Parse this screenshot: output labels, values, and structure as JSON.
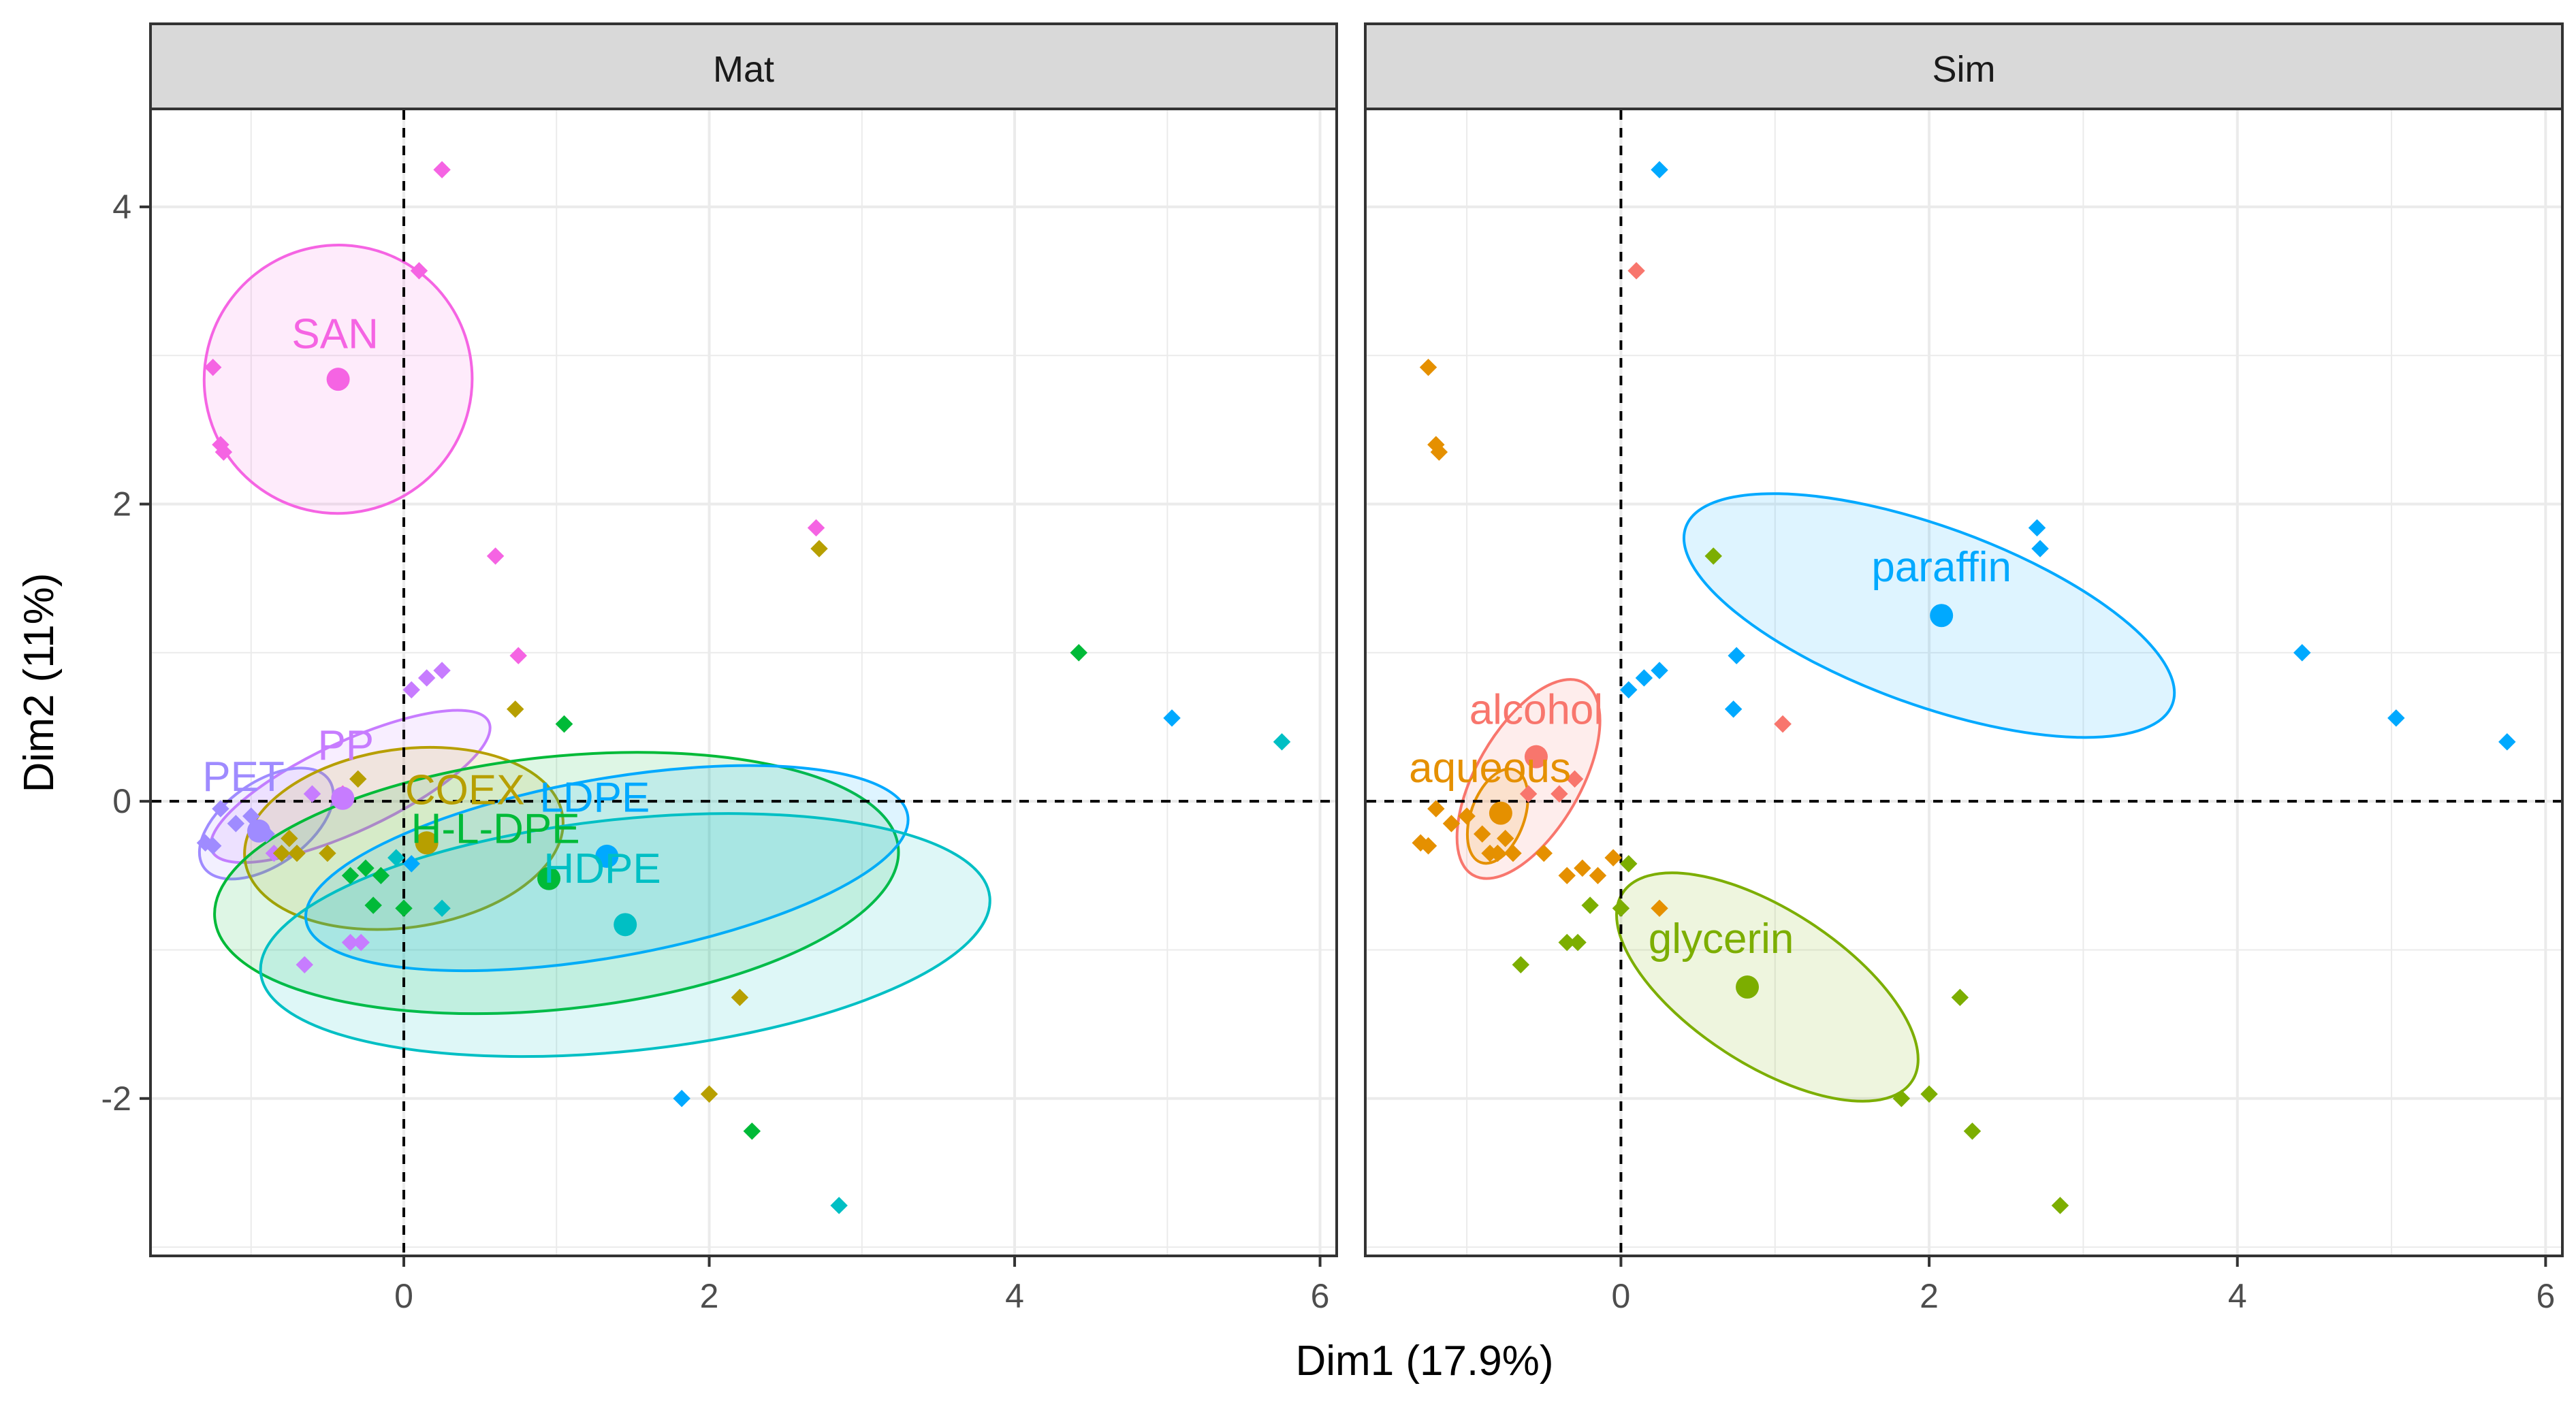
{
  "chart_data": {
    "type": "scatter",
    "subtype": "PCA individuals plot with 95% confidence ellipses, faceted",
    "xlabel": "Dim1 (17.9%)",
    "ylabel": "Dim2 (11%)",
    "xlim": [
      -1.65,
      6.1
    ],
    "ylim": [
      -3.05,
      4.65
    ],
    "xticks": [
      0,
      2,
      4,
      6
    ],
    "yticks": [
      -2,
      0,
      2,
      4
    ],
    "grid": true,
    "reference_lines": {
      "x": 0,
      "y": 0,
      "style": "dashed"
    },
    "points": [
      {
        "x": 0.25,
        "y": 4.25,
        "mat": "SAN",
        "sim": "paraffin"
      },
      {
        "x": 0.1,
        "y": 3.57,
        "mat": "SAN",
        "sim": "alcohol"
      },
      {
        "x": -1.25,
        "y": 2.92,
        "mat": "SAN",
        "sim": "aqueous"
      },
      {
        "x": -1.2,
        "y": 2.4,
        "mat": "SAN",
        "sim": "aqueous"
      },
      {
        "x": -1.18,
        "y": 2.35,
        "mat": "SAN",
        "sim": "aqueous"
      },
      {
        "x": 0.6,
        "y": 1.65,
        "mat": "SAN",
        "sim": "glycerin"
      },
      {
        "x": 0.75,
        "y": 0.98,
        "mat": "SAN",
        "sim": "paraffin"
      },
      {
        "x": 2.7,
        "y": 1.84,
        "mat": "SAN",
        "sim": "paraffin"
      },
      {
        "x": 2.72,
        "y": 1.7,
        "mat": "COEX",
        "sim": "paraffin"
      },
      {
        "x": 4.42,
        "y": 1.0,
        "mat": "H-L-DPE",
        "sim": "paraffin"
      },
      {
        "x": 5.03,
        "y": 0.56,
        "mat": "LDPE",
        "sim": "paraffin"
      },
      {
        "x": 5.75,
        "y": 0.4,
        "mat": "HDPE",
        "sim": "paraffin"
      },
      {
        "x": 0.05,
        "y": 0.75,
        "mat": "PP",
        "sim": "paraffin"
      },
      {
        "x": 0.15,
        "y": 0.83,
        "mat": "PP",
        "sim": "paraffin"
      },
      {
        "x": 0.25,
        "y": 0.88,
        "mat": "PP",
        "sim": "paraffin"
      },
      {
        "x": 0.73,
        "y": 0.62,
        "mat": "COEX",
        "sim": "paraffin"
      },
      {
        "x": 1.05,
        "y": 0.52,
        "mat": "H-L-DPE",
        "sim": "alcohol"
      },
      {
        "x": -0.6,
        "y": 0.05,
        "mat": "PP",
        "sim": "alcohol"
      },
      {
        "x": -0.4,
        "y": 0.05,
        "mat": "SAN",
        "sim": "alcohol"
      },
      {
        "x": -0.3,
        "y": 0.15,
        "mat": "COEX",
        "sim": "alcohol"
      },
      {
        "x": -1.0,
        "y": -0.1,
        "mat": "PET",
        "sim": "aqueous"
      },
      {
        "x": -1.1,
        "y": -0.15,
        "mat": "PET",
        "sim": "aqueous"
      },
      {
        "x": -1.2,
        "y": -0.05,
        "mat": "PET",
        "sim": "aqueous"
      },
      {
        "x": -1.3,
        "y": -0.28,
        "mat": "PET",
        "sim": "aqueous"
      },
      {
        "x": -1.25,
        "y": -0.3,
        "mat": "PET",
        "sim": "aqueous"
      },
      {
        "x": -0.9,
        "y": -0.22,
        "mat": "PET",
        "sim": "aqueous"
      },
      {
        "x": -0.85,
        "y": -0.35,
        "mat": "PP",
        "sim": "aqueous"
      },
      {
        "x": -0.8,
        "y": -0.35,
        "mat": "COEX",
        "sim": "aqueous"
      },
      {
        "x": -0.7,
        "y": -0.35,
        "mat": "COEX",
        "sim": "aqueous"
      },
      {
        "x": -0.75,
        "y": -0.25,
        "mat": "COEX",
        "sim": "aqueous"
      },
      {
        "x": -0.5,
        "y": -0.35,
        "mat": "COEX",
        "sim": "aqueous"
      },
      {
        "x": -0.35,
        "y": -0.5,
        "mat": "H-L-DPE",
        "sim": "aqueous"
      },
      {
        "x": -0.25,
        "y": -0.45,
        "mat": "H-L-DPE",
        "sim": "aqueous"
      },
      {
        "x": -0.15,
        "y": -0.5,
        "mat": "H-L-DPE",
        "sim": "aqueous"
      },
      {
        "x": -0.05,
        "y": -0.38,
        "mat": "HDPE",
        "sim": "aqueous"
      },
      {
        "x": 0.05,
        "y": -0.42,
        "mat": "LDPE",
        "sim": "glycerin"
      },
      {
        "x": -0.2,
        "y": -0.7,
        "mat": "H-L-DPE",
        "sim": "glycerin"
      },
      {
        "x": 0.0,
        "y": -0.72,
        "mat": "H-L-DPE",
        "sim": "glycerin"
      },
      {
        "x": 0.25,
        "y": -0.72,
        "mat": "HDPE",
        "sim": "aqueous"
      },
      {
        "x": -0.35,
        "y": -0.95,
        "mat": "PP",
        "sim": "glycerin"
      },
      {
        "x": -0.28,
        "y": -0.95,
        "mat": "PP",
        "sim": "glycerin"
      },
      {
        "x": -0.65,
        "y": -1.1,
        "mat": "PP",
        "sim": "glycerin"
      },
      {
        "x": 2.2,
        "y": -1.32,
        "mat": "COEX",
        "sim": "glycerin"
      },
      {
        "x": 1.82,
        "y": -2.0,
        "mat": "LDPE",
        "sim": "glycerin"
      },
      {
        "x": 2.0,
        "y": -1.97,
        "mat": "COEX",
        "sim": "glycerin"
      },
      {
        "x": 2.28,
        "y": -2.22,
        "mat": "H-L-DPE",
        "sim": "glycerin"
      },
      {
        "x": 2.85,
        "y": -2.72,
        "mat": "HDPE",
        "sim": "glycerin"
      },
      {
        "x": 1.05,
        "y": 0.52,
        "mat": "H-L-DPE",
        "sim": "alcohol"
      }
    ],
    "facets": [
      {
        "strip": "Mat",
        "groups": [
          {
            "name": "SAN",
            "color": "#F564E3",
            "centroid": [
              -0.43,
              2.84
            ],
            "ellipse": {
              "cx": -0.43,
              "cy": 2.84,
              "rx": 0.88,
              "ry": 0.9,
              "angle": 55
            },
            "label": "SAN",
            "label_at": [
              -0.45,
              3.05
            ]
          },
          {
            "name": "PP",
            "color": "#C77CFF",
            "centroid": [
              -0.4,
              0.02
            ],
            "ellipse": {
              "cx": -0.35,
              "cy": 0.1,
              "rx": 1.0,
              "ry": 0.3,
              "angle": 25
            },
            "label": "PP",
            "label_at": [
              -0.38,
              0.28
            ]
          },
          {
            "name": "PET",
            "color": "#9F8BFF",
            "centroid": [
              -0.95,
              -0.2
            ],
            "ellipse": {
              "cx": -0.9,
              "cy": -0.15,
              "rx": 0.5,
              "ry": 0.28,
              "angle": 35
            },
            "label": "PET",
            "label_at": [
              -1.05,
              0.07
            ]
          },
          {
            "name": "COEX",
            "color": "#B79F00",
            "centroid": [
              0.15,
              -0.28
            ],
            "ellipse": {
              "cx": 0.0,
              "cy": -0.25,
              "rx": 1.05,
              "ry": 0.6,
              "angle": 8
            },
            "label": "COEX",
            "label_at": [
              0.4,
              -0.02
            ]
          },
          {
            "name": "H-L-DPE",
            "color": "#00BA38",
            "centroid": [
              0.95,
              -0.52
            ],
            "ellipse": {
              "cx": 1.0,
              "cy": -0.55,
              "rx": 2.25,
              "ry": 0.85,
              "angle": 6
            },
            "label": "H-L-DPE",
            "label_at": [
              0.6,
              -0.28
            ]
          },
          {
            "name": "LDPE",
            "color": "#00A9FF",
            "centroid": [
              1.33,
              -0.37
            ],
            "ellipse": {
              "cx": 1.33,
              "cy": -0.45,
              "rx": 2.0,
              "ry": 0.6,
              "angle": 10
            },
            "label": "LDPE",
            "label_at": [
              1.25,
              -0.07
            ]
          },
          {
            "name": "HDPE",
            "color": "#00BFC4",
            "centroid": [
              1.45,
              -0.83
            ],
            "ellipse": {
              "cx": 1.45,
              "cy": -0.9,
              "rx": 2.4,
              "ry": 0.78,
              "angle": 6
            },
            "label": "HDPE",
            "label_at": [
              1.3,
              -0.55
            ]
          }
        ]
      },
      {
        "strip": "Sim",
        "groups": [
          {
            "name": "paraffin",
            "color": "#00A9FF",
            "centroid": [
              2.08,
              1.25
            ],
            "ellipse": {
              "cx": 2.0,
              "cy": 1.25,
              "rx": 1.68,
              "ry": 0.6,
              "angle": -20
            },
            "label": "paraffin",
            "label_at": [
              2.08,
              1.48
            ]
          },
          {
            "name": "alcohol",
            "color": "#F8766D",
            "centroid": [
              -0.55,
              0.3
            ],
            "ellipse": {
              "cx": -0.6,
              "cy": 0.15,
              "rx": 0.72,
              "ry": 0.35,
              "angle": 60
            },
            "label": "alcohol",
            "label_at": [
              -0.55,
              0.52
            ]
          },
          {
            "name": "aqueous",
            "color": "#E59000",
            "centroid": [
              -0.78,
              -0.08
            ],
            "ellipse": {
              "cx": -0.8,
              "cy": -0.1,
              "rx": 0.32,
              "ry": 0.18,
              "angle": 70
            },
            "label": "aqueous",
            "label_at": [
              -0.85,
              0.13
            ]
          },
          {
            "name": "glycerin",
            "color": "#7CAE00",
            "centroid": [
              0.82,
              -1.25
            ],
            "ellipse": {
              "cx": 0.95,
              "cy": -1.25,
              "rx": 1.12,
              "ry": 0.52,
              "angle": -33
            },
            "label": "glycerin",
            "label_at": [
              0.65,
              -1.02
            ]
          }
        ]
      }
    ]
  }
}
